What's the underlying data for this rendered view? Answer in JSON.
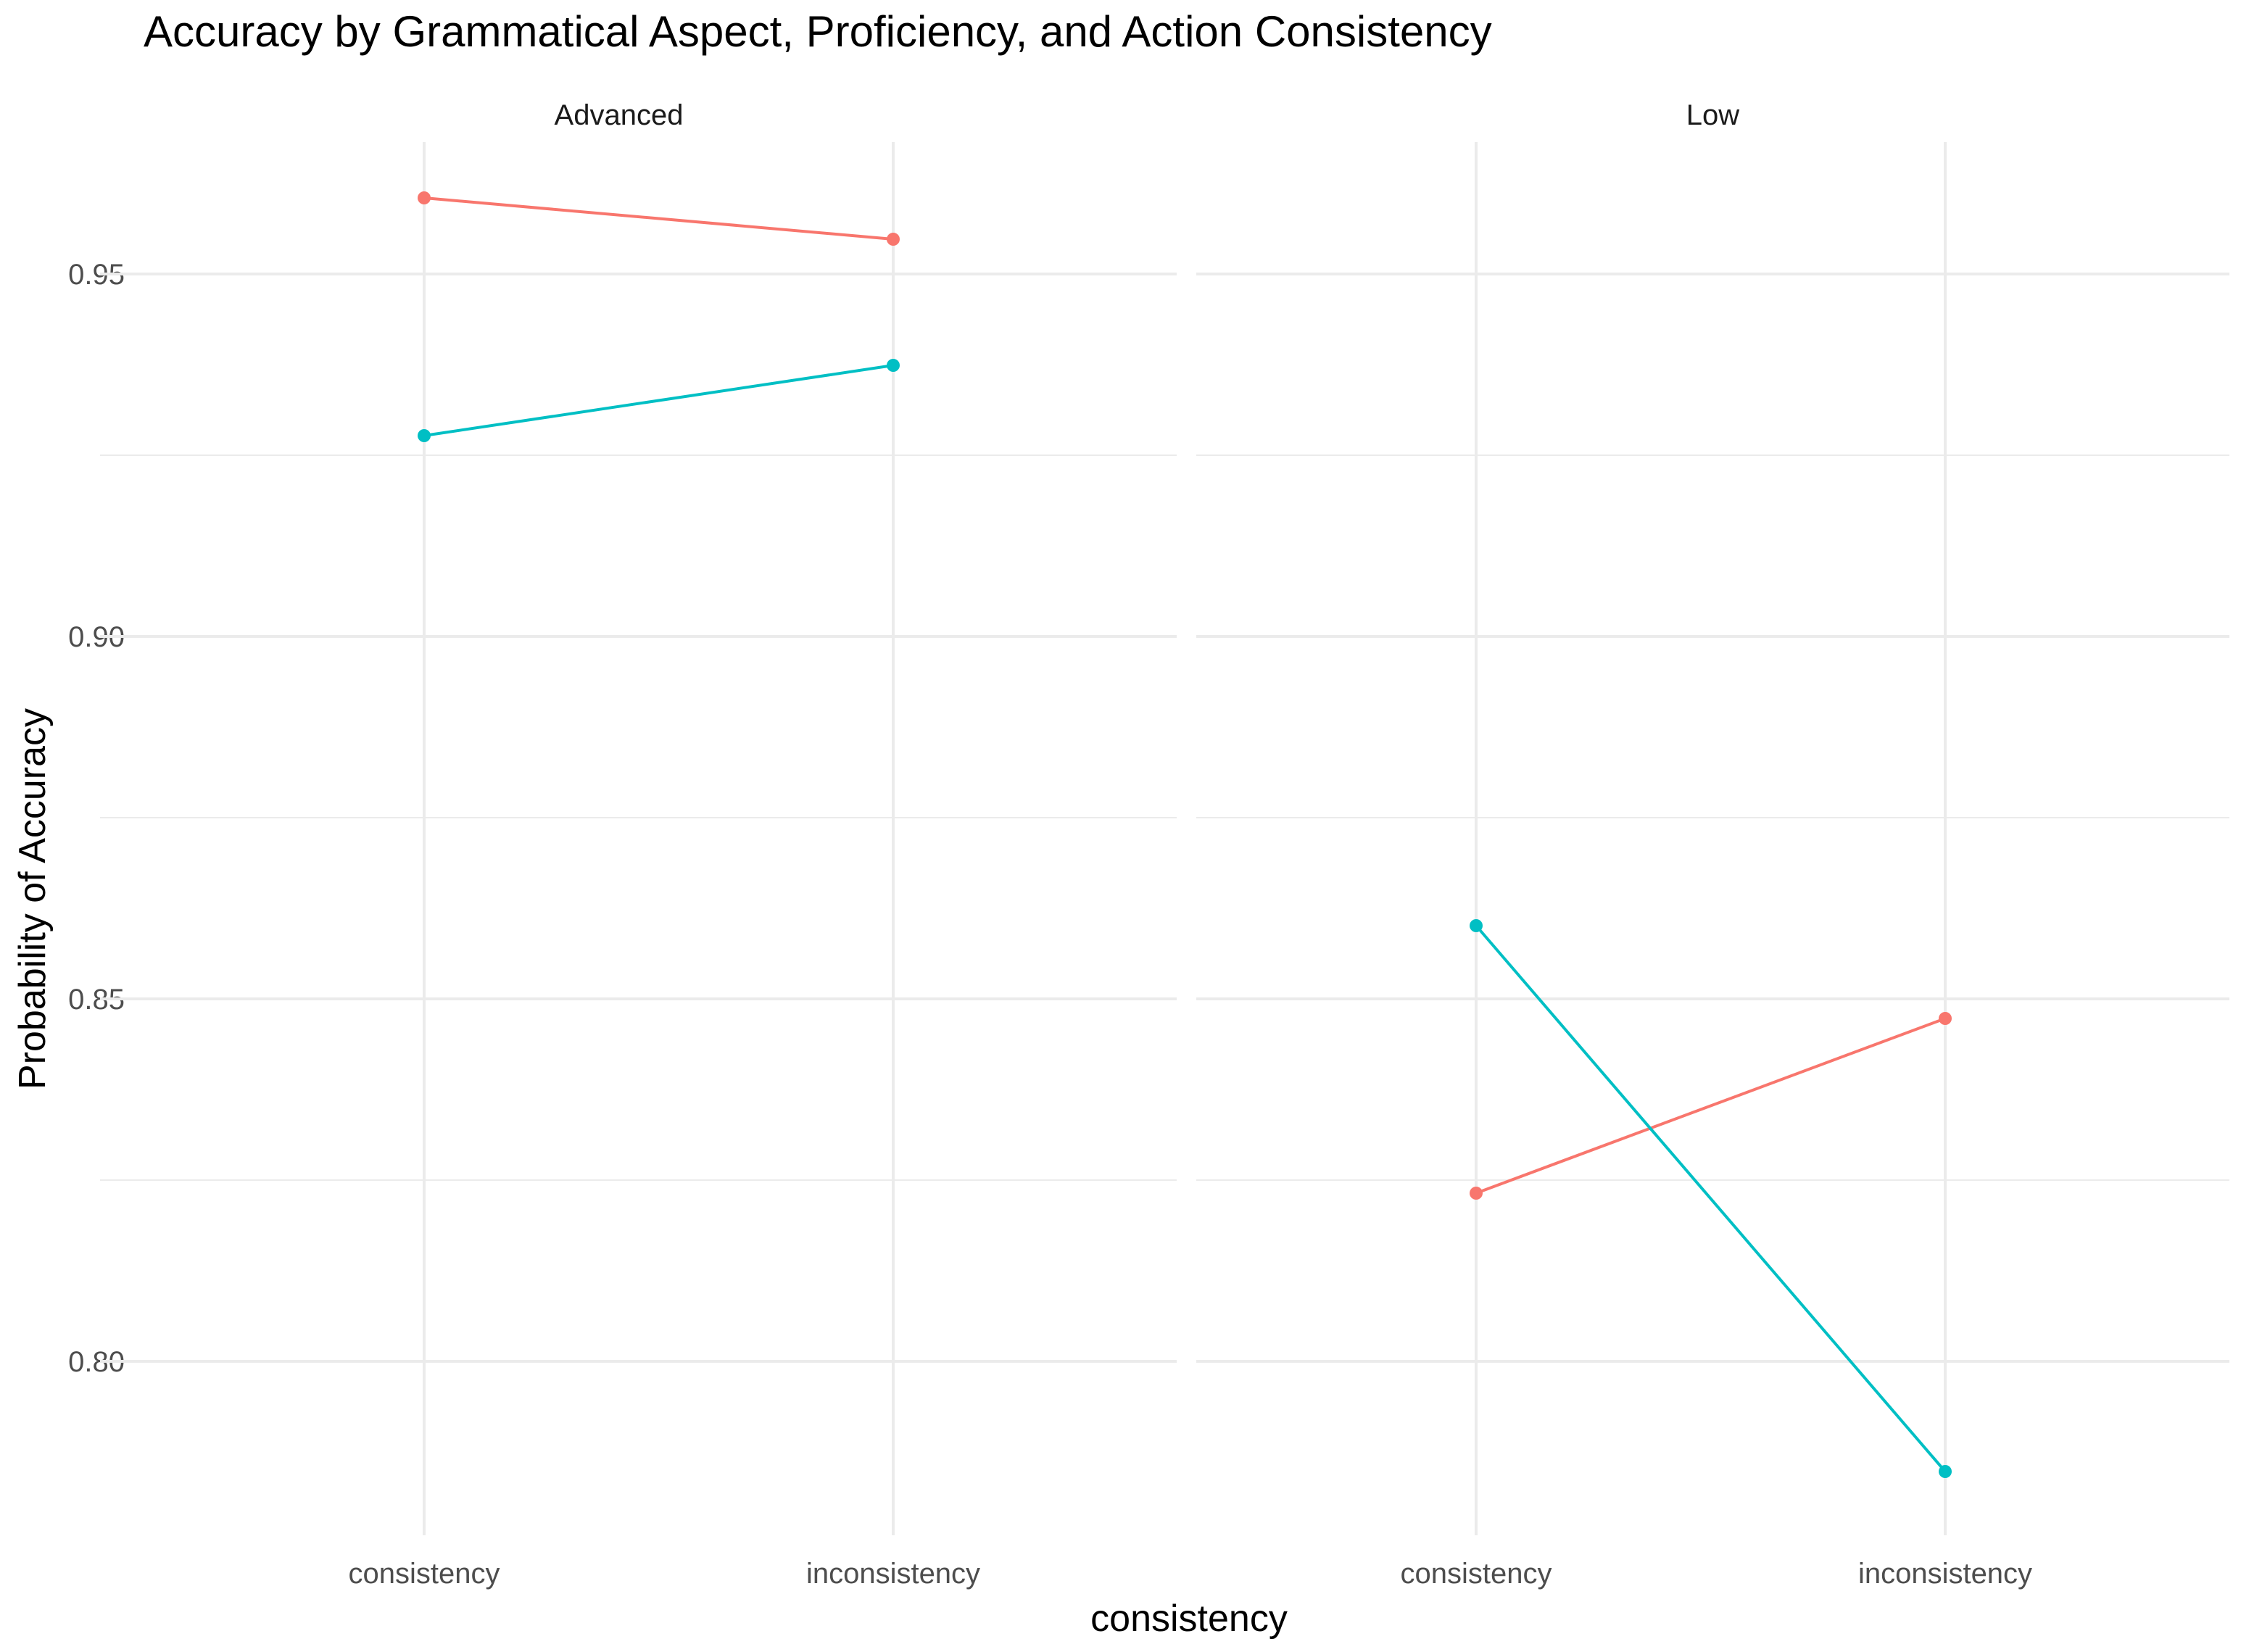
{
  "chart_data": {
    "type": "line",
    "title": "Accuracy by Grammatical Aspect, Proficiency, and Action Consistency",
    "xlabel": "consistency",
    "ylabel": "Probability of Accuracy",
    "categories": [
      "consistency",
      "inconsistency"
    ],
    "ylim": [
      0.776,
      0.9682
    ],
    "y_ticks": [
      0.8,
      0.85,
      0.9,
      0.95
    ],
    "y_tick_labels": [
      "0.80",
      "0.85",
      "0.90",
      "0.95"
    ],
    "grid": true,
    "legend": "none",
    "facets": [
      {
        "label": "Advanced",
        "series": [
          {
            "color": "#F8766D",
            "values": [
              0.9605,
              0.9548
            ]
          },
          {
            "color": "#00BFC4",
            "values": [
              0.9277,
              0.9374
            ]
          }
        ]
      },
      {
        "label": "Low",
        "series": [
          {
            "color": "#F8766D",
            "values": [
              0.8232,
              0.8473
            ]
          },
          {
            "color": "#00BFC4",
            "values": [
              0.8601,
              0.7848
            ]
          }
        ]
      }
    ]
  }
}
